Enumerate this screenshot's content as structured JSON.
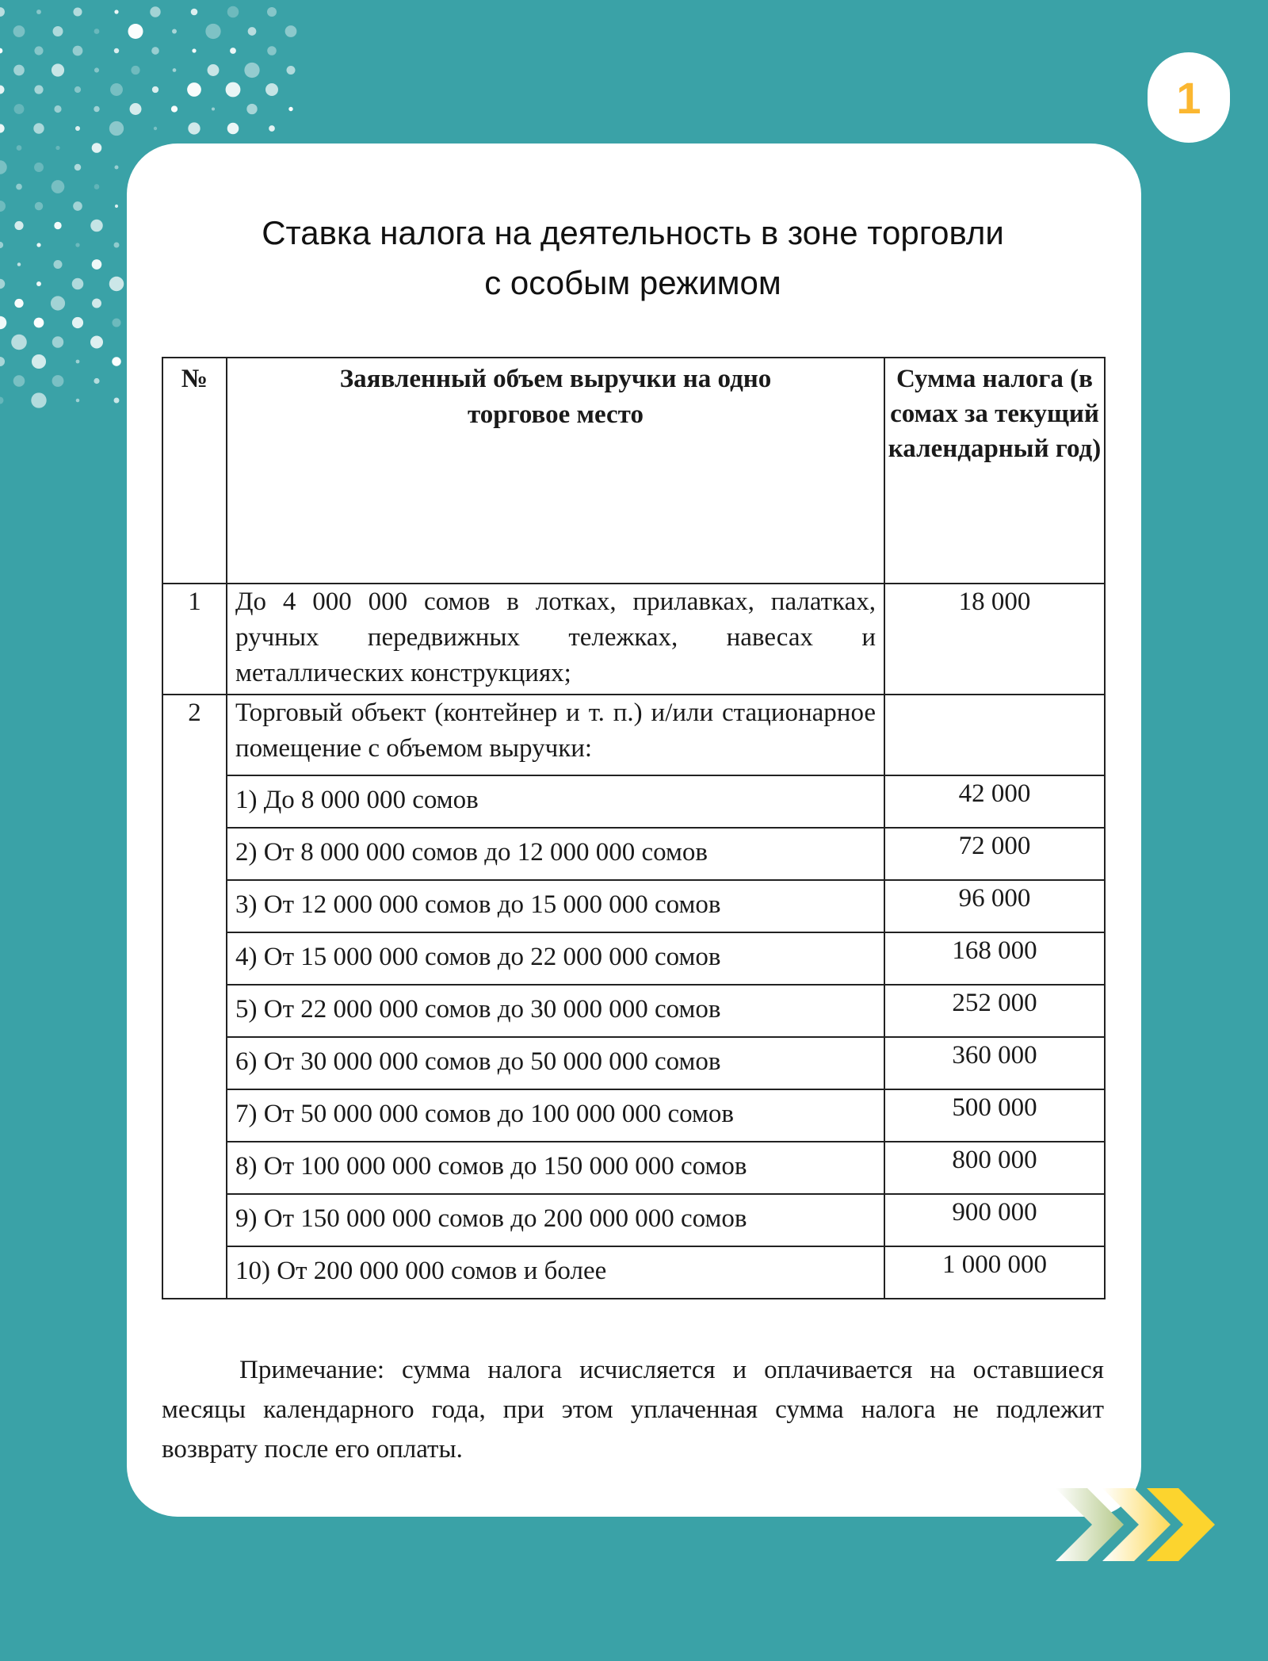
{
  "page_number": "1",
  "title": {
    "line1": "Ставка налога на деятельность в зоне торговли",
    "line2": "с особым режимом"
  },
  "table": {
    "headers": [
      "№",
      "Заявленный объем выручки на одно торговое место",
      "Сумма налога (в сомах за текущий календарный год)"
    ],
    "row1": {
      "num": "1",
      "desc": "До 4 000 000 сомов в лотках, прилавках, палатках, ручных передвижных тележках, навесах и металлических конструкциях;",
      "sum": "18 000"
    },
    "row2": {
      "num": "2",
      "desc": "Торговый объект (контейнер и т. п.) и/или стационарное помещение с объемом выручки:",
      "sum": ""
    },
    "subrows": [
      {
        "desc": "1) До 8 000 000 сомов",
        "sum": "42 000"
      },
      {
        "desc": "2) От 8 000 000 сомов до 12 000 000 сомов",
        "sum": "72 000"
      },
      {
        "desc": "3) От 12 000 000 сомов до 15 000 000 сомов",
        "sum": "96 000"
      },
      {
        "desc": "4) От 15 000 000 сомов до 22 000 000 сомов",
        "sum": "168 000"
      },
      {
        "desc": "5) От 22 000 000 сомов до 30 000 000 сомов",
        "sum": "252 000"
      },
      {
        "desc": "6) От 30 000 000 сомов до 50 000 000 сомов",
        "sum": "360 000"
      },
      {
        "desc": "7) От 50 000 000 сомов до 100 000 000 сомов",
        "sum": "500 000"
      },
      {
        "desc": "8) От 100 000 000 сомов до 150 000 000 сомов",
        "sum": "800 000"
      },
      {
        "desc": "9) От 150 000 000 сомов до 200 000 000 сомов",
        "sum": "900 000"
      },
      {
        "desc": "10) От 200 000 000 сомов и более",
        "sum": "1 000 000"
      }
    ]
  },
  "note": "Примечание: сумма налога исчисляется и оплачивается на оставшиеся месяцы календарного года, при этом уплаченная сумма налога не подлежит возврату после его оплаты.",
  "colors": {
    "background": "#3aa2a7",
    "badge_number": "#fbb731",
    "arrow_yellow": "#fcd42e"
  },
  "icons": {
    "decoration": "dot-pattern",
    "next": "triple-chevron-right-icon"
  }
}
